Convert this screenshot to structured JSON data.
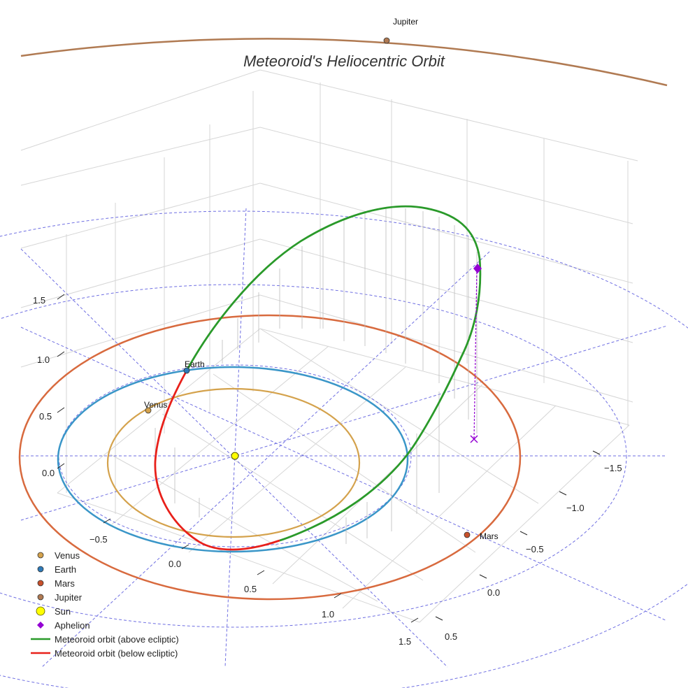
{
  "chart_data": {
    "type": "scatter",
    "title": "Meteoroid's Heliocentric Orbit",
    "grid": true,
    "x_ticks": [
      "−0.5",
      "0.0",
      "0.5",
      "1.0",
      "1.5"
    ],
    "y_ticks": [
      "−1.5",
      "−1.0",
      "−0.5",
      "0.0",
      "0.5"
    ],
    "z_ticks": [
      "0.0",
      "0.5",
      "1.0",
      "1.5"
    ],
    "planets": [
      {
        "name": "Venus",
        "color": "#d4a24c",
        "orbit_radius_au": 0.72,
        "label": "Venus"
      },
      {
        "name": "Earth",
        "color": "#2e7ab8",
        "orbit_radius_au": 1.0,
        "label": "Earth"
      },
      {
        "name": "Mars",
        "color": "#c8502a",
        "orbit_radius_au": 1.52,
        "label": "Mars"
      },
      {
        "name": "Jupiter",
        "color": "#b07a52",
        "orbit_radius_au": 5.2,
        "label": "Jupiter"
      }
    ],
    "sun": {
      "name": "Sun",
      "color": "#ffff00"
    },
    "aphelion": {
      "name": "Aphelion",
      "color": "#9400d3",
      "marker": "diamond"
    },
    "series": [
      {
        "name": "Meteoroid orbit (above ecliptic)",
        "color": "#2a9a2a"
      },
      {
        "name": "Meteoroid orbit (below ecliptic)",
        "color": "#e8201a"
      }
    ],
    "legend": {
      "position": "lower-left",
      "entries": [
        {
          "label": "Venus",
          "kind": "dot",
          "color": "#d4a24c"
        },
        {
          "label": "Earth",
          "kind": "dot",
          "color": "#2e7ab8"
        },
        {
          "label": "Mars",
          "kind": "dot",
          "color": "#c8502a"
        },
        {
          "label": "Jupiter",
          "kind": "dot",
          "color": "#b07a52"
        },
        {
          "label": "Sun",
          "kind": "sun",
          "color": "#ffff00"
        },
        {
          "label": "Aphelion",
          "kind": "diamond",
          "color": "#9400d3"
        },
        {
          "label": "Meteoroid orbit (above ecliptic)",
          "kind": "line",
          "color": "#2a9a2a"
        },
        {
          "label": "Meteoroid orbit (below ecliptic)",
          "kind": "line",
          "color": "#e8201a"
        }
      ]
    }
  }
}
